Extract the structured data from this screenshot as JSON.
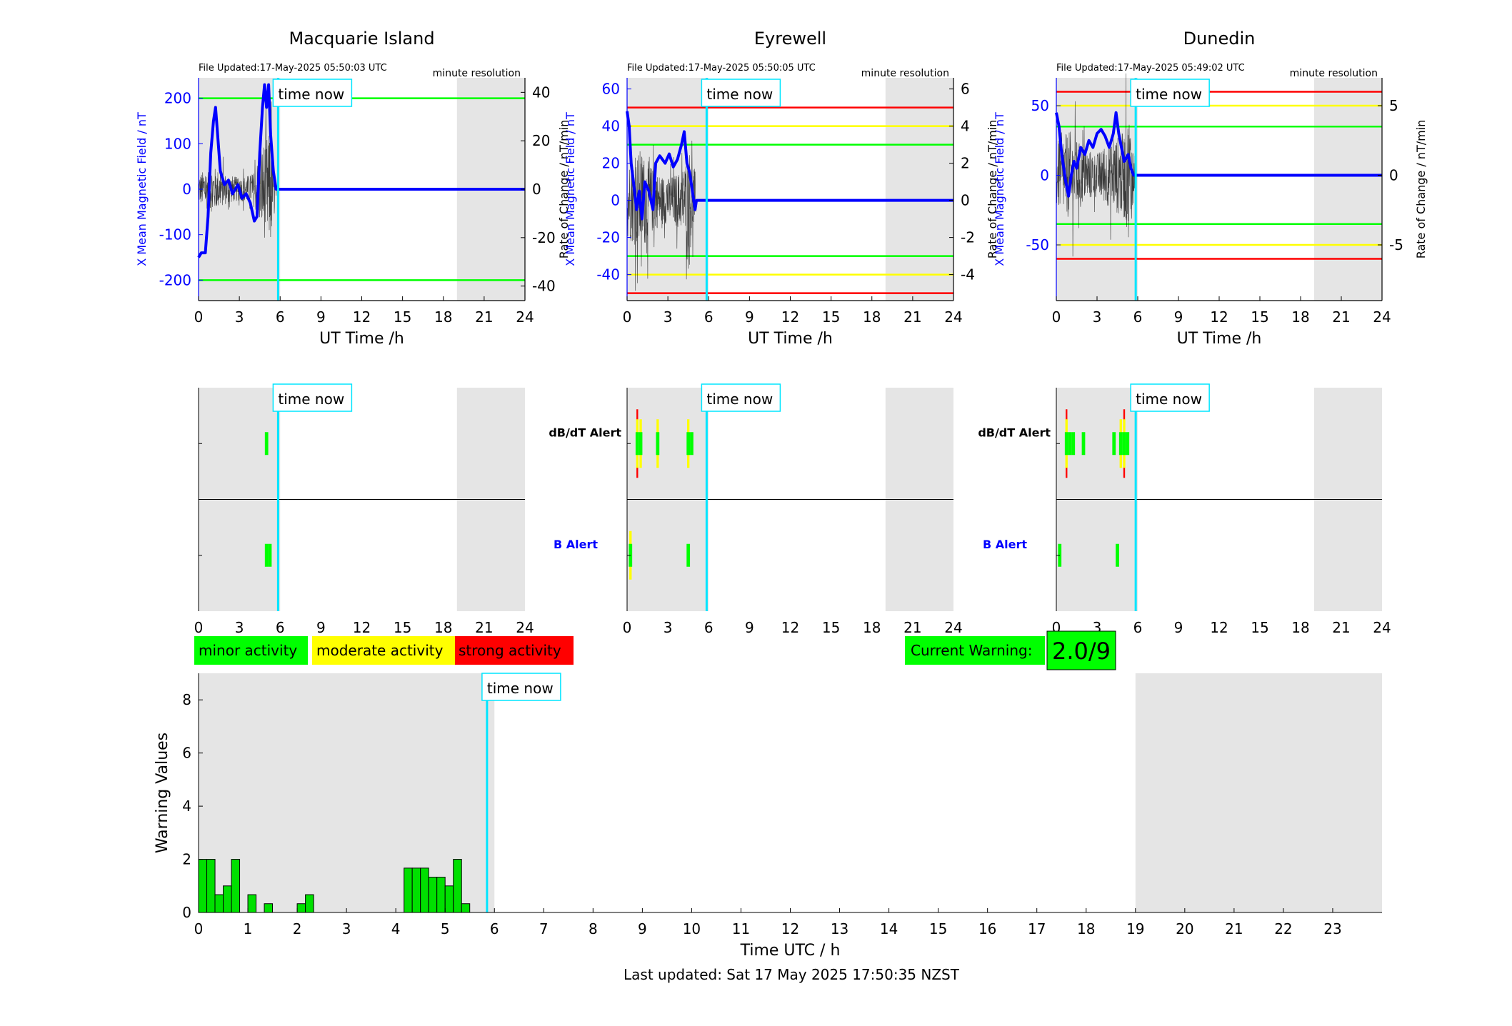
{
  "colors": {
    "minor": "#00ff00",
    "moderate": "#ffff00",
    "strong": "#ff0000",
    "shade": "#e5e5e5",
    "time_now_line": "#00e5ff",
    "field_line": "#0000ff",
    "rate_line": "#000000",
    "warning_bars": "#00e000"
  },
  "stations": [
    {
      "name": "Macquarie Island",
      "file_updated": "File Updated:17-May-2025 05:50:03 UTC",
      "resolution": "minute resolution",
      "ylabel_left": "X Mean Magnetic Field / nT",
      "ylabel_right": "Rate of Change / nT/min",
      "left_ylim": [
        -245,
        245
      ],
      "right_ylim": [
        -46,
        46
      ],
      "left_ticks": [
        -200,
        -100,
        0,
        100,
        200
      ],
      "left_tick_labels": [
        "-200",
        "-100",
        "0",
        "100",
        "200"
      ],
      "right_ticks": [
        -40,
        -20,
        0,
        20,
        40
      ],
      "right_tick_labels": [
        "-40",
        "-20",
        "0",
        "20",
        "40"
      ],
      "thresholds": [
        {
          "value": 200,
          "level": "minor"
        },
        {
          "value": -200,
          "level": "minor"
        }
      ],
      "field_series": [
        [
          0,
          -150
        ],
        [
          0.2,
          -140
        ],
        [
          0.5,
          -140
        ],
        [
          0.7,
          -60
        ],
        [
          0.9,
          80
        ],
        [
          1.1,
          150
        ],
        [
          1.25,
          180
        ],
        [
          1.4,
          120
        ],
        [
          1.6,
          40
        ],
        [
          1.9,
          10
        ],
        [
          2.2,
          20
        ],
        [
          2.5,
          -10
        ],
        [
          2.9,
          10
        ],
        [
          3.2,
          -20
        ],
        [
          3.5,
          -10
        ],
        [
          3.8,
          -30
        ],
        [
          4.1,
          -70
        ],
        [
          4.3,
          -60
        ],
        [
          4.5,
          80
        ],
        [
          4.7,
          180
        ],
        [
          4.85,
          230
        ],
        [
          5.0,
          180
        ],
        [
          5.15,
          230
        ],
        [
          5.3,
          120
        ],
        [
          5.5,
          40
        ],
        [
          5.7,
          0
        ],
        [
          24,
          0
        ]
      ],
      "rate_noise_amplitude": [
        [
          0,
          8
        ],
        [
          1,
          12
        ],
        [
          2,
          8
        ],
        [
          3,
          6
        ],
        [
          4,
          8
        ],
        [
          4.8,
          25
        ],
        [
          5.3,
          30
        ],
        [
          5.7,
          3
        ],
        [
          5.9,
          0
        ]
      ]
    },
    {
      "name": "Eyrewell",
      "file_updated": "File Updated:17-May-2025 05:50:05 UTC",
      "resolution": "minute resolution",
      "ylabel_left": "X Mean Magnetic Field / nT",
      "ylabel_right": "Rate of Change / nT/min",
      "left_ylim": [
        -54,
        66
      ],
      "right_ylim": [
        -5.4,
        6.6
      ],
      "left_ticks": [
        -40,
        -20,
        0,
        20,
        40,
        60
      ],
      "left_tick_labels": [
        "-40",
        "-20",
        "0",
        "20",
        "40",
        "60"
      ],
      "right_ticks": [
        -4,
        -2,
        0,
        2,
        4,
        6
      ],
      "right_tick_labels": [
        "-4",
        "-2",
        "0",
        "2",
        "4",
        "6"
      ],
      "thresholds": [
        {
          "value": 50,
          "level": "strong"
        },
        {
          "value": 40,
          "level": "moderate"
        },
        {
          "value": 30,
          "level": "minor"
        },
        {
          "value": -30,
          "level": "minor"
        },
        {
          "value": -40,
          "level": "moderate"
        },
        {
          "value": -50,
          "level": "strong"
        }
      ],
      "field_series": [
        [
          0,
          48
        ],
        [
          0.15,
          40
        ],
        [
          0.3,
          20
        ],
        [
          0.5,
          8
        ],
        [
          0.7,
          -5
        ],
        [
          0.9,
          5
        ],
        [
          1.1,
          -10
        ],
        [
          1.3,
          10
        ],
        [
          1.6,
          5
        ],
        [
          1.9,
          -5
        ],
        [
          2.1,
          20
        ],
        [
          2.4,
          24
        ],
        [
          2.8,
          20
        ],
        [
          3.1,
          25
        ],
        [
          3.4,
          18
        ],
        [
          3.7,
          22
        ],
        [
          4.0,
          30
        ],
        [
          4.2,
          37
        ],
        [
          4.4,
          20
        ],
        [
          4.6,
          15
        ],
        [
          4.8,
          5
        ],
        [
          5.0,
          -5
        ],
        [
          5.1,
          0
        ],
        [
          24,
          0
        ]
      ],
      "rate_noise_amplitude": [
        [
          0,
          2.5
        ],
        [
          1,
          3.5
        ],
        [
          2,
          2
        ],
        [
          3,
          1.5
        ],
        [
          4,
          2
        ],
        [
          4.6,
          3.5
        ],
        [
          5,
          2
        ],
        [
          5.1,
          0
        ]
      ]
    },
    {
      "name": "Dunedin",
      "file_updated": "File Updated:17-May-2025 05:49:02 UTC",
      "resolution": "minute resolution",
      "ylabel_left": "X Mean Magnetic Field / nT",
      "ylabel_right": "Rate of Change / nT/min",
      "left_ylim": [
        -90,
        70
      ],
      "right_ylim": [
        -9,
        7
      ],
      "left_ticks": [
        -50,
        0,
        50
      ],
      "left_tick_labels": [
        "-50",
        "0",
        "50"
      ],
      "right_ticks": [
        -5,
        0,
        5
      ],
      "right_tick_labels": [
        "-5",
        "0",
        "5"
      ],
      "thresholds": [
        {
          "value": 60,
          "level": "strong"
        },
        {
          "value": 50,
          "level": "moderate"
        },
        {
          "value": 35,
          "level": "minor"
        },
        {
          "value": -35,
          "level": "minor"
        },
        {
          "value": -50,
          "level": "moderate"
        },
        {
          "value": -60,
          "level": "strong"
        }
      ],
      "field_series": [
        [
          0,
          45
        ],
        [
          0.2,
          35
        ],
        [
          0.4,
          15
        ],
        [
          0.7,
          -5
        ],
        [
          0.9,
          -15
        ],
        [
          1.1,
          0
        ],
        [
          1.3,
          10
        ],
        [
          1.5,
          5
        ],
        [
          1.8,
          20
        ],
        [
          2.1,
          15
        ],
        [
          2.4,
          25
        ],
        [
          2.7,
          20
        ],
        [
          3.0,
          30
        ],
        [
          3.3,
          33
        ],
        [
          3.6,
          28
        ],
        [
          3.9,
          20
        ],
        [
          4.2,
          30
        ],
        [
          4.4,
          45
        ],
        [
          4.6,
          30
        ],
        [
          4.8,
          20
        ],
        [
          5.0,
          10
        ],
        [
          5.3,
          15
        ],
        [
          5.5,
          5
        ],
        [
          5.7,
          0
        ],
        [
          24,
          0
        ]
      ],
      "rate_noise_amplitude": [
        [
          0,
          3
        ],
        [
          1,
          4
        ],
        [
          2,
          2.5
        ],
        [
          3,
          2
        ],
        [
          4,
          3
        ],
        [
          5,
          4
        ],
        [
          5.4,
          6
        ],
        [
          5.7,
          2
        ],
        [
          5.9,
          0
        ]
      ]
    }
  ],
  "alerts": [
    {
      "dbdt_label": "",
      "b_label": "",
      "dbdt": [
        {
          "x": 5.0,
          "level": "minor",
          "severity": 1
        }
      ],
      "b": [
        {
          "x": 5.0,
          "level": "minor",
          "severity": 1
        },
        {
          "x": 5.25,
          "level": "minor",
          "severity": 1
        }
      ]
    },
    {
      "dbdt_label": "dB/dT Alert",
      "b_label": "B Alert",
      "dbdt": [
        {
          "x": 0.75,
          "level": "strong",
          "severity": 3
        },
        {
          "x": 1.0,
          "level": "moderate",
          "severity": 2
        },
        {
          "x": 2.25,
          "level": "moderate",
          "severity": 2
        },
        {
          "x": 4.5,
          "level": "moderate",
          "severity": 2
        },
        {
          "x": 4.75,
          "level": "minor",
          "severity": 1
        }
      ],
      "b": [
        {
          "x": 0.25,
          "level": "moderate",
          "severity": 2
        },
        {
          "x": 4.5,
          "level": "minor",
          "severity": 1
        }
      ]
    },
    {
      "dbdt_label": "dB/dT Alert",
      "b_label": "B Alert",
      "dbdt": [
        {
          "x": 0.75,
          "level": "strong",
          "severity": 3
        },
        {
          "x": 1.0,
          "level": "minor",
          "severity": 1
        },
        {
          "x": 1.25,
          "level": "minor",
          "severity": 1
        },
        {
          "x": 2.0,
          "level": "minor",
          "severity": 1
        },
        {
          "x": 4.25,
          "level": "minor",
          "severity": 1
        },
        {
          "x": 4.75,
          "level": "moderate",
          "severity": 2
        },
        {
          "x": 5.0,
          "level": "strong",
          "severity": 3
        },
        {
          "x": 5.25,
          "level": "minor",
          "severity": 1
        }
      ],
      "b": [
        {
          "x": 0.25,
          "level": "minor",
          "severity": 1
        },
        {
          "x": 4.5,
          "level": "minor",
          "severity": 1
        }
      ]
    }
  ],
  "time_axis": {
    "xlabel": "UT Time /h",
    "ticks": [
      0,
      3,
      6,
      9,
      12,
      15,
      18,
      21,
      24
    ],
    "tick_labels": [
      "0",
      "3",
      "6",
      "9",
      "12",
      "15",
      "18",
      "21",
      "24"
    ],
    "xlim": [
      0,
      24
    ]
  },
  "time_now": {
    "label": "time now",
    "value": 5.85
  },
  "shade_ranges": [
    [
      0,
      6
    ],
    [
      19,
      24
    ]
  ],
  "legend": {
    "minor": "minor activity",
    "moderate": "moderate activity",
    "strong": "strong activity"
  },
  "current_warning": {
    "label": "Current Warning:",
    "value": "2.0/9"
  },
  "chart_data": {
    "type": "bar",
    "title": "",
    "xlabel": "Time UTC / h",
    "ylabel": "Warning Values",
    "xlim": [
      0,
      24
    ],
    "ylim": [
      0,
      9
    ],
    "y_ticks": [
      0,
      2,
      4,
      6,
      8
    ],
    "y_tick_labels": [
      "0",
      "2",
      "4",
      "6",
      "8"
    ],
    "x_ticks": [
      0,
      1,
      2,
      3,
      4,
      5,
      6,
      7,
      8,
      9,
      10,
      11,
      12,
      13,
      14,
      15,
      16,
      17,
      18,
      19,
      20,
      21,
      22,
      23
    ],
    "x_tick_labels": [
      "0",
      "1",
      "2",
      "3",
      "4",
      "5",
      "6",
      "7",
      "8",
      "9",
      "10",
      "11",
      "12",
      "13",
      "14",
      "15",
      "16",
      "17",
      "18",
      "19",
      "20",
      "21",
      "22",
      "23"
    ],
    "bin_width": 0.1667,
    "x": [
      0,
      0.167,
      0.333,
      0.5,
      0.667,
      1.0,
      1.333,
      2.0,
      2.167,
      4.167,
      4.333,
      4.5,
      4.667,
      4.833,
      5.0,
      5.167,
      5.333
    ],
    "values": [
      2,
      2,
      0.67,
      1,
      2,
      0.67,
      0.33,
      0.33,
      0.67,
      1.67,
      1.67,
      1.67,
      1.33,
      1.33,
      1,
      2,
      0.33
    ],
    "shade_ranges": [
      [
        0,
        6
      ],
      [
        19,
        24
      ]
    ],
    "time_now": 5.85,
    "time_now_label": "time now"
  },
  "footer": {
    "last_updated": "Last updated: Sat 17 May 2025 17:50:35 NZST"
  }
}
